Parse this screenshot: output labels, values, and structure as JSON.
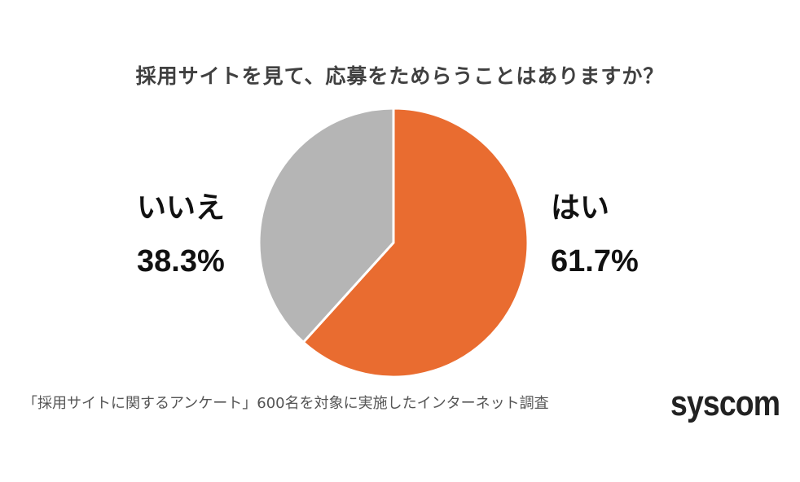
{
  "chart_data": {
    "type": "pie",
    "title": "採用サイトを見て、応募をためらうことはありますか？",
    "categories": [
      "はい",
      "いいえ"
    ],
    "values": [
      61.7,
      38.3
    ],
    "labels": [
      "61.7%",
      "38.3%"
    ],
    "colors": [
      "#E96C30",
      "#B5B5B5"
    ],
    "start_angle": "12 o'clock, clockwise",
    "legend": "none (direct labels)",
    "note": "「採用サイトに関するアンケート」600名を対象に実施したインターネット調査"
  },
  "title": "採用サイトを見て、応募をためらうことはありますか？",
  "labels": {
    "no": {
      "name": "いいえ",
      "pct": "38.3%"
    },
    "yes": {
      "name": "はい",
      "pct": "61.7%"
    }
  },
  "footnote": "「採用サイトに関するアンケート」600名を対象に実施したインターネット調査",
  "logo": "syscom"
}
